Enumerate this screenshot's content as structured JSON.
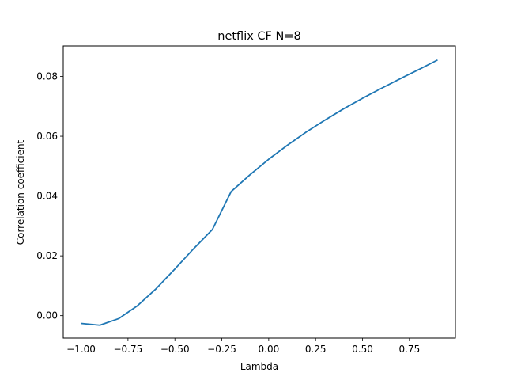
{
  "chart_data": {
    "type": "line",
    "title": "netflix CF N=8",
    "xlabel": "Lambda",
    "ylabel": "Correlation coefficient",
    "xlim": [
      -1.095,
      0.995
    ],
    "ylim": [
      -0.0075,
      0.0902
    ],
    "grid": false,
    "x_ticks": [
      -1.0,
      -0.75,
      -0.5,
      -0.25,
      0.0,
      0.25,
      0.5,
      0.75
    ],
    "x_tick_labels": [
      "−1.00",
      "−0.75",
      "−0.50",
      "−0.25",
      "0.00",
      "0.25",
      "0.50",
      "0.75"
    ],
    "y_ticks": [
      0.0,
      0.02,
      0.04,
      0.06,
      0.08
    ],
    "y_tick_labels": [
      "0.00",
      "0.02",
      "0.04",
      "0.06",
      "0.08"
    ],
    "line_color": "#1f77b4",
    "series": [
      {
        "x": [
          -1.0,
          -0.9,
          -0.8,
          -0.7,
          -0.6,
          -0.5,
          -0.4,
          -0.3,
          -0.2,
          -0.1,
          0.0,
          0.1,
          0.2,
          0.3,
          0.4,
          0.5,
          0.6,
          0.7,
          0.8,
          0.9
        ],
        "y": [
          -0.0026,
          -0.0032,
          -0.001,
          0.0033,
          0.009,
          0.0156,
          0.0224,
          0.0288,
          0.0415,
          0.0471,
          0.0523,
          0.057,
          0.0614,
          0.0654,
          0.0692,
          0.0727,
          0.076,
          0.0792,
          0.0823,
          0.0855
        ]
      }
    ]
  }
}
